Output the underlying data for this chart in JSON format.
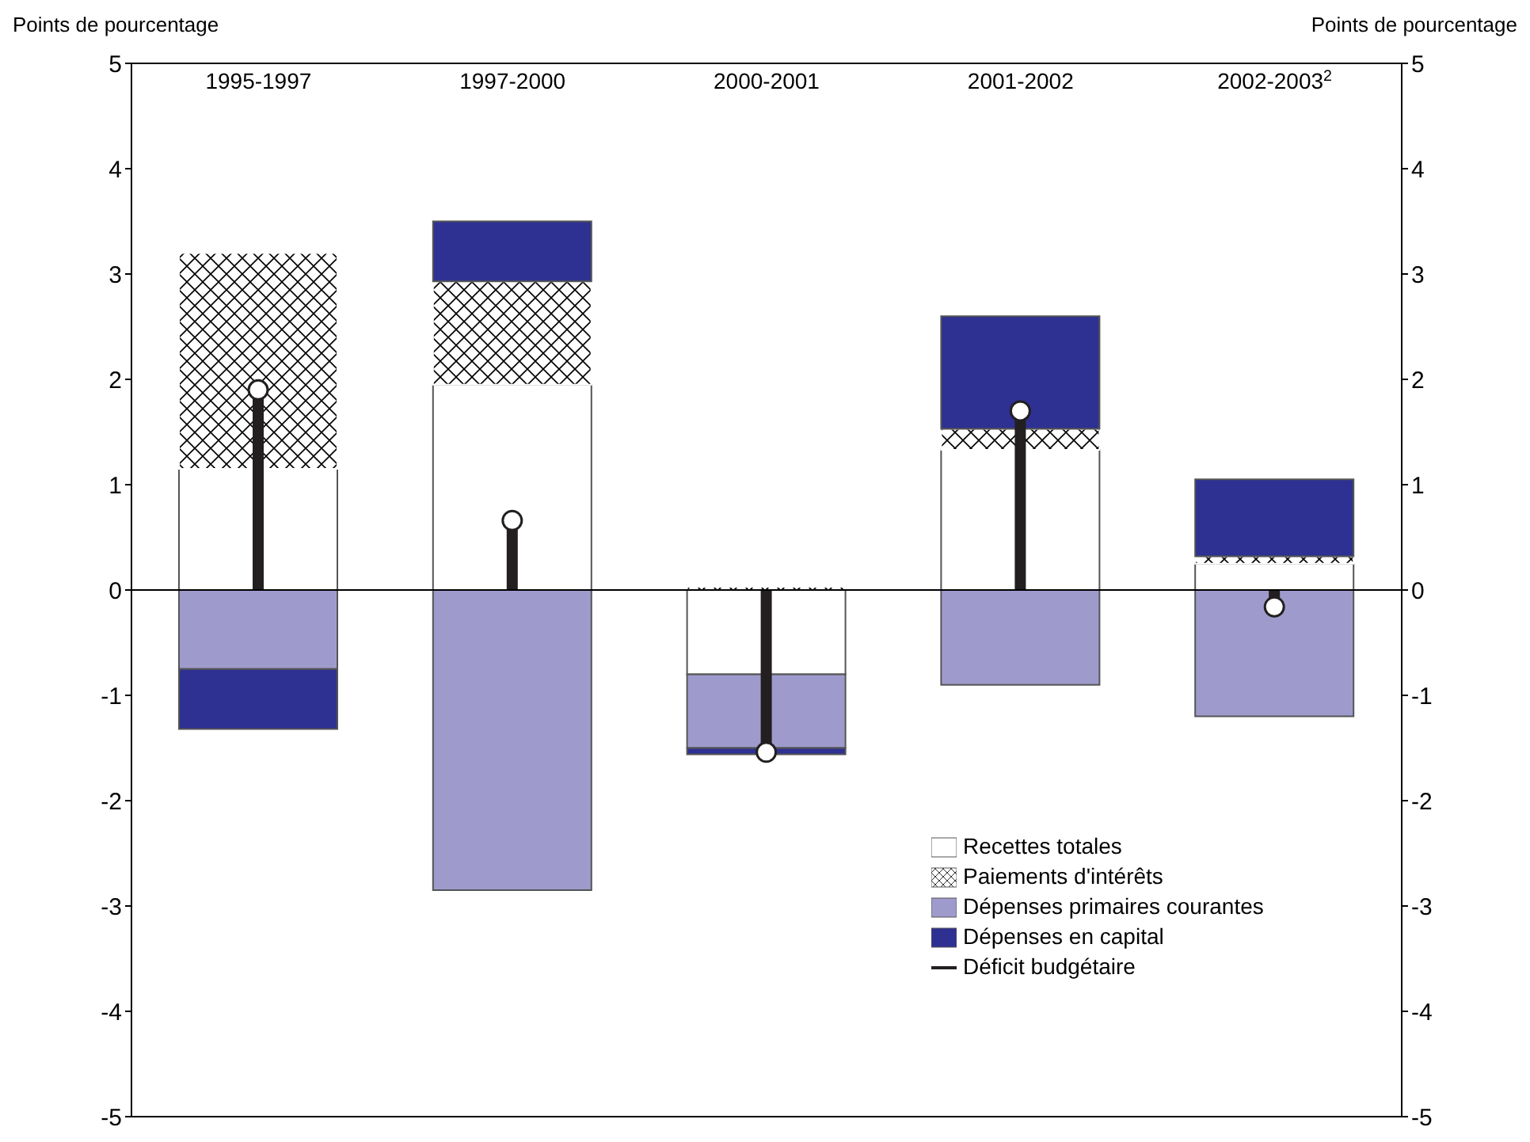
{
  "chart_data": {
    "type": "bar",
    "stacked": true,
    "ylabel": "Points de pourcentage",
    "y2label": "Points de pourcentage",
    "categories": [
      "1995-1997",
      "1997-2000",
      "2000-2001",
      "2001-2002",
      "2002-2003$^{2}$"
    ],
    "series": [
      {
        "name": "Recettes totales",
        "color": "#ffffff",
        "values": [
          1.15,
          1.95,
          -0.8,
          1.33,
          0.25
        ]
      },
      {
        "name": "Paiements d'intérêts",
        "color": "#ffffff",
        "values": [
          2.05,
          0.98,
          0.03,
          0.2,
          0.07
        ]
      },
      {
        "name": "Dépenses primaires courantes",
        "color": "#9e9bcc",
        "values": [
          -0.75,
          -2.85,
          -0.7,
          -0.9,
          -1.2
        ]
      },
      {
        "name": "Dépenses en capital",
        "color": "#2e3192",
        "values": [
          -0.57,
          0.57,
          -0.06,
          1.07,
          0.73
        ]
      },
      {
        "name": "Déficit budgétaire",
        "type": "lollipop",
        "color": "#231f20",
        "values": [
          1.9,
          0.66,
          -1.54,
          1.7,
          -0.16
        ]
      }
    ],
    "ylim": [
      -5,
      5
    ],
    "yticks": [
      -5,
      -4,
      -3,
      -2,
      -1,
      0,
      1,
      2,
      3,
      4,
      5
    ],
    "y2lim": [
      -5,
      5
    ],
    "y2ticks": [
      -5,
      -4,
      -3,
      -2,
      -1,
      0,
      1,
      2,
      3,
      4,
      5
    ],
    "ref_lines": [
      {
        "axis": "y",
        "value": 0,
        "color": "#000000"
      }
    ],
    "grid": false,
    "legend": "bottom right"
  }
}
